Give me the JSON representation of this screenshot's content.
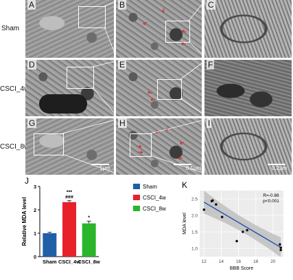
{
  "rows": [
    {
      "label": "Sham",
      "panels": [
        "A",
        "B",
        "C"
      ]
    },
    {
      "label": "CSCI_4w",
      "panels": [
        "D",
        "E",
        "F"
      ]
    },
    {
      "label": "CSCI_8w",
      "panels": [
        "G",
        "H",
        "I"
      ]
    }
  ],
  "scale_bars": {
    "G": "1μm",
    "H": "0.5μm",
    "I": "0.2μm"
  },
  "arrow_glyph": "➜",
  "chart_data": [
    {
      "panel": "J",
      "type": "bar",
      "categories": [
        "Sham",
        "CSCI_4w",
        "CSCI_8w"
      ],
      "values": [
        1.0,
        2.33,
        1.42
      ],
      "errors": [
        0.04,
        0.06,
        0.1
      ],
      "colors": [
        "#1f5fa8",
        "#e8202a",
        "#2bb52b"
      ],
      "ylabel": "Relative MDA level",
      "ylim": [
        0,
        3
      ],
      "yticks": [
        "0",
        "1",
        "2",
        "3"
      ],
      "annotations": [
        {
          "category": "CSCI_4w",
          "lines": [
            "***",
            "###"
          ]
        },
        {
          "category": "CSCI_8w",
          "lines": [
            "*"
          ]
        }
      ],
      "legend": {
        "position": "right",
        "entries": [
          "Sham",
          "CSCI_4w",
          "CSCI_8w"
        ]
      }
    },
    {
      "panel": "K",
      "type": "scatter",
      "xlabel": "BBB Score",
      "ylabel": "MDA level",
      "xlim": [
        11.5,
        21.2
      ],
      "ylim": [
        0.75,
        2.75
      ],
      "xticks": [
        12,
        14,
        16,
        18,
        20
      ],
      "yticks": [
        "1.0",
        "1.5",
        "2.0",
        "2.5"
      ],
      "points": [
        {
          "x": 12.0,
          "y": 2.17
        },
        {
          "x": 12.9,
          "y": 2.43
        },
        {
          "x": 13.0,
          "y": 2.45
        },
        {
          "x": 13.4,
          "y": 2.33
        },
        {
          "x": 14.1,
          "y": 1.95
        },
        {
          "x": 15.8,
          "y": 1.22
        },
        {
          "x": 16.5,
          "y": 1.5
        },
        {
          "x": 17.0,
          "y": 1.55
        },
        {
          "x": 20.8,
          "y": 1.12
        },
        {
          "x": 20.9,
          "y": 1.02
        },
        {
          "x": 20.9,
          "y": 0.95
        }
      ],
      "fit": {
        "x": [
          12,
          20.9
        ],
        "y": [
          2.4,
          1.03
        ]
      },
      "stats": [
        "R=-0.88",
        "p<0.001"
      ],
      "panel_bg": "#ececec",
      "line_color": "#1b4fb0"
    }
  ]
}
